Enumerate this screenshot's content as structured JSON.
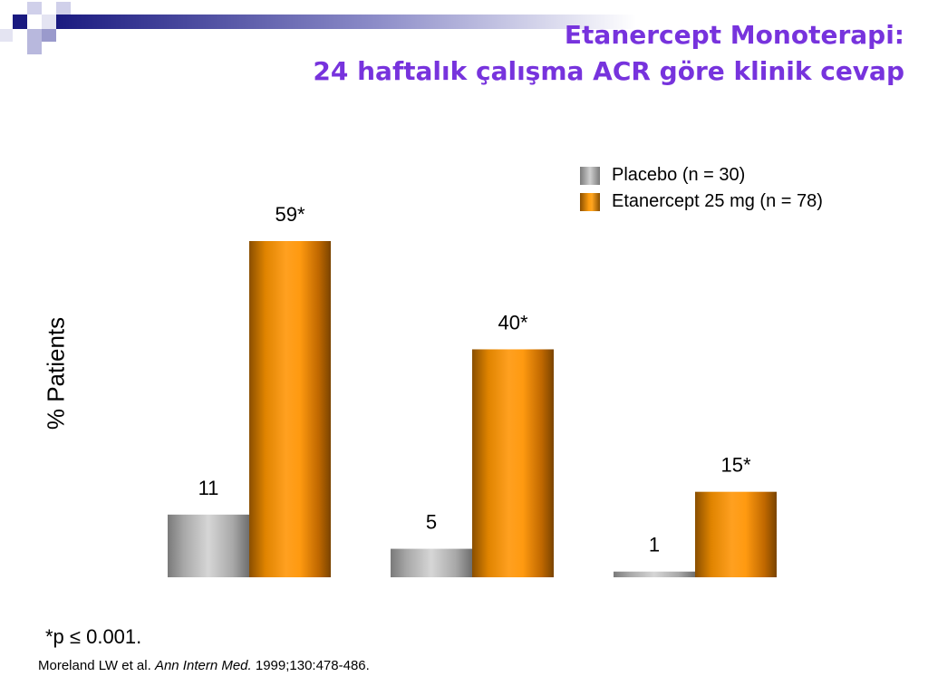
{
  "title_line1": "Etanercept Monoterapi:",
  "title_line2": "24 haftalık çalışma ACR  göre klinik cevap",
  "footnote": "*p ≤ 0.001.",
  "citation": {
    "authors": "Moreland LW et al.",
    "journal": "Ann Intern Med.",
    "details": "1999;130:478-486."
  },
  "colors": {
    "title": "#7733dd",
    "placebo": "#a8a8a8",
    "etanercept": "#ff9900",
    "deco_dark": "#1a1a80",
    "deco_light": "#b8b8dd"
  },
  "chart_data": {
    "type": "bar",
    "ylabel": "% Patients",
    "xlabel": "",
    "categories": [
      "",
      "",
      ""
    ],
    "ylim": [
      0,
      60
    ],
    "grid": false,
    "legend": "top-right",
    "series": [
      {
        "name": "Placebo (n = 30)",
        "values": [
          11,
          5,
          1
        ],
        "labels": [
          "11",
          "5",
          "1"
        ]
      },
      {
        "name": "Etanercept 25 mg (n = 78)",
        "values": [
          59,
          40,
          15
        ],
        "labels": [
          "59*",
          "40*",
          "15*"
        ]
      }
    ]
  }
}
